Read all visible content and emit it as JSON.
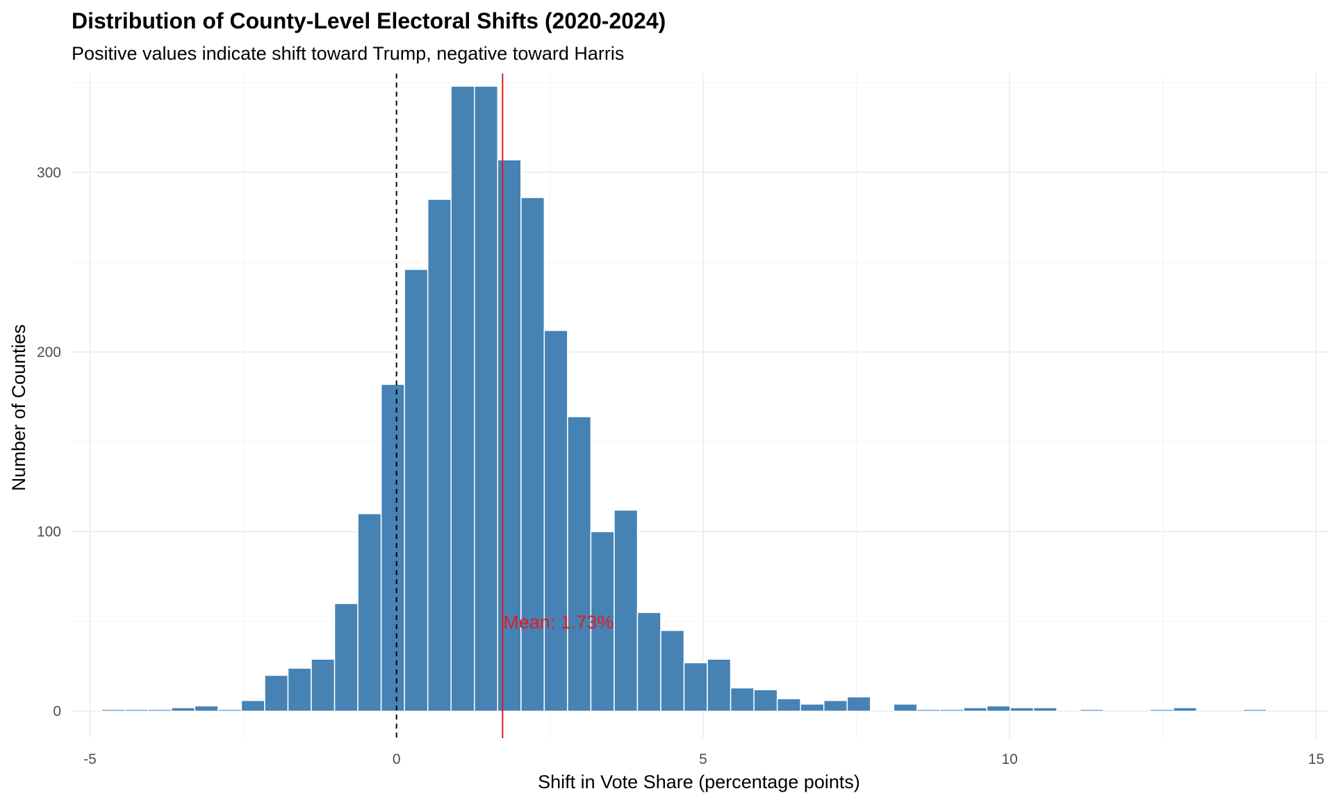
{
  "chart_data": {
    "type": "bar",
    "title": "Distribution of County-Level Electoral Shifts (2020-2024)",
    "subtitle": "Positive values indicate shift toward Trump, negative toward Harris",
    "xlabel": "Shift in Vote Share (percentage points)",
    "ylabel": "Number of Counties",
    "xlim": [
      -5.3,
      15.2
    ],
    "ylim": [
      -15,
      355
    ],
    "x_ticks": [
      "-5",
      "0",
      "5",
      "10",
      "15"
    ],
    "x_tick_values": [
      -5,
      0,
      5,
      10,
      15
    ],
    "y_ticks": [
      "0",
      "100",
      "200",
      "300"
    ],
    "y_tick_values": [
      0,
      100,
      200,
      300
    ],
    "grid": true,
    "bin_width": 0.38,
    "bar_color": "#4682B4",
    "bins": [
      {
        "x": -4.62,
        "count": 1
      },
      {
        "x": -4.24,
        "count": 1
      },
      {
        "x": -3.86,
        "count": 1
      },
      {
        "x": -3.48,
        "count": 2
      },
      {
        "x": -3.1,
        "count": 3
      },
      {
        "x": -2.72,
        "count": 1
      },
      {
        "x": -2.34,
        "count": 6
      },
      {
        "x": -1.96,
        "count": 20
      },
      {
        "x": -1.58,
        "count": 24
      },
      {
        "x": -1.2,
        "count": 29
      },
      {
        "x": -0.82,
        "count": 60
      },
      {
        "x": -0.44,
        "count": 110
      },
      {
        "x": -0.06,
        "count": 182
      },
      {
        "x": 0.32,
        "count": 246
      },
      {
        "x": 0.7,
        "count": 285
      },
      {
        "x": 1.08,
        "count": 348
      },
      {
        "x": 1.46,
        "count": 348
      },
      {
        "x": 1.84,
        "count": 307
      },
      {
        "x": 2.22,
        "count": 286
      },
      {
        "x": 2.6,
        "count": 212
      },
      {
        "x": 2.98,
        "count": 164
      },
      {
        "x": 3.36,
        "count": 100
      },
      {
        "x": 3.74,
        "count": 112
      },
      {
        "x": 4.12,
        "count": 55
      },
      {
        "x": 4.5,
        "count": 45
      },
      {
        "x": 4.88,
        "count": 27
      },
      {
        "x": 5.26,
        "count": 29
      },
      {
        "x": 5.64,
        "count": 13
      },
      {
        "x": 6.02,
        "count": 12
      },
      {
        "x": 6.4,
        "count": 7
      },
      {
        "x": 6.78,
        "count": 4
      },
      {
        "x": 7.16,
        "count": 6
      },
      {
        "x": 7.54,
        "count": 8
      },
      {
        "x": 8.3,
        "count": 4
      },
      {
        "x": 8.68,
        "count": 1
      },
      {
        "x": 9.06,
        "count": 1
      },
      {
        "x": 9.44,
        "count": 2
      },
      {
        "x": 9.82,
        "count": 3
      },
      {
        "x": 10.2,
        "count": 2
      },
      {
        "x": 10.58,
        "count": 2
      },
      {
        "x": 11.34,
        "count": 1
      },
      {
        "x": 12.48,
        "count": 1
      },
      {
        "x": 12.86,
        "count": 2
      },
      {
        "x": 14.0,
        "count": 1
      }
    ],
    "reference_lines": [
      {
        "x": 0,
        "style": "dashed",
        "color": "#000000"
      },
      {
        "x": 1.73,
        "style": "solid",
        "color": "#E41A1C"
      }
    ],
    "annotation": {
      "text": "Mean: 1.73%",
      "x": 1.73,
      "y": 50,
      "color": "#E41A1C"
    }
  }
}
